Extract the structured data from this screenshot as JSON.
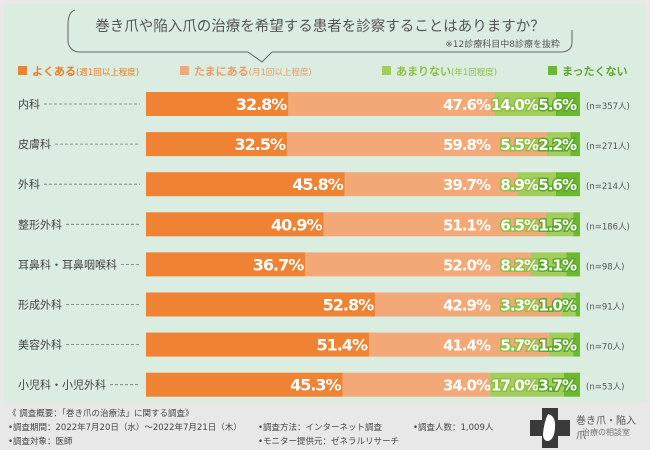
{
  "chart_data": {
    "type": "bar",
    "orientation": "horizontal",
    "stacked": true,
    "title": "巻き爪や陥入爪の治療を希望する患者を診察することはありますか？",
    "subtitle": "※12診療科目中8診療を抜粋",
    "categories": [
      "内科",
      "皮膚科",
      "外科",
      "整形外科",
      "耳鼻科・耳鼻咽喉科",
      "形成外科",
      "美容外科",
      "小児科・小児外科"
    ],
    "sample_sizes": [
      "(n=357人)",
      "(n=271人)",
      "(n=214人)",
      "(n=186人)",
      "(n=98人)",
      "(n=91人)",
      "(n=70人)",
      "(n=53人)"
    ],
    "series": [
      {
        "name": "よくある",
        "note": "(週1回以上程度)",
        "color": "#ef8233",
        "values": [
          32.8,
          32.5,
          45.8,
          40.9,
          36.7,
          52.8,
          51.4,
          45.3
        ]
      },
      {
        "name": "たまにある",
        "note": "(月1回以上程度)",
        "color": "#f3a877",
        "values": [
          47.6,
          59.8,
          39.7,
          51.1,
          52.0,
          42.9,
          41.4,
          34.0
        ]
      },
      {
        "name": "あまりない",
        "note": "(年1回程度)",
        "color": "#a3cd5c",
        "values": [
          14.0,
          5.5,
          8.9,
          6.5,
          8.2,
          3.3,
          5.7,
          17.0
        ]
      },
      {
        "name": "まったくない",
        "note": "",
        "color": "#6cb92e",
        "values": [
          5.6,
          2.2,
          5.6,
          1.5,
          3.1,
          1.0,
          1.5,
          3.7
        ]
      }
    ],
    "xlim": [
      0,
      100
    ],
    "unit": "%",
    "legend_position": "top"
  },
  "footer": {
    "heading": "《 調査概要：「巻き爪の治療法」に関する調査》",
    "period": "•調査期間：2022年7月20日（水）～2022年7月21日（木）",
    "target": "•調査対象：医師",
    "method": "•調査方法：インターネット調査",
    "provider": "•モニター提供元：ゼネラルリサーチ",
    "count": "•調査人数：1,009人"
  },
  "logo": {
    "title": "巻き爪・陥入爪",
    "subtitle": "治療の相談室"
  }
}
